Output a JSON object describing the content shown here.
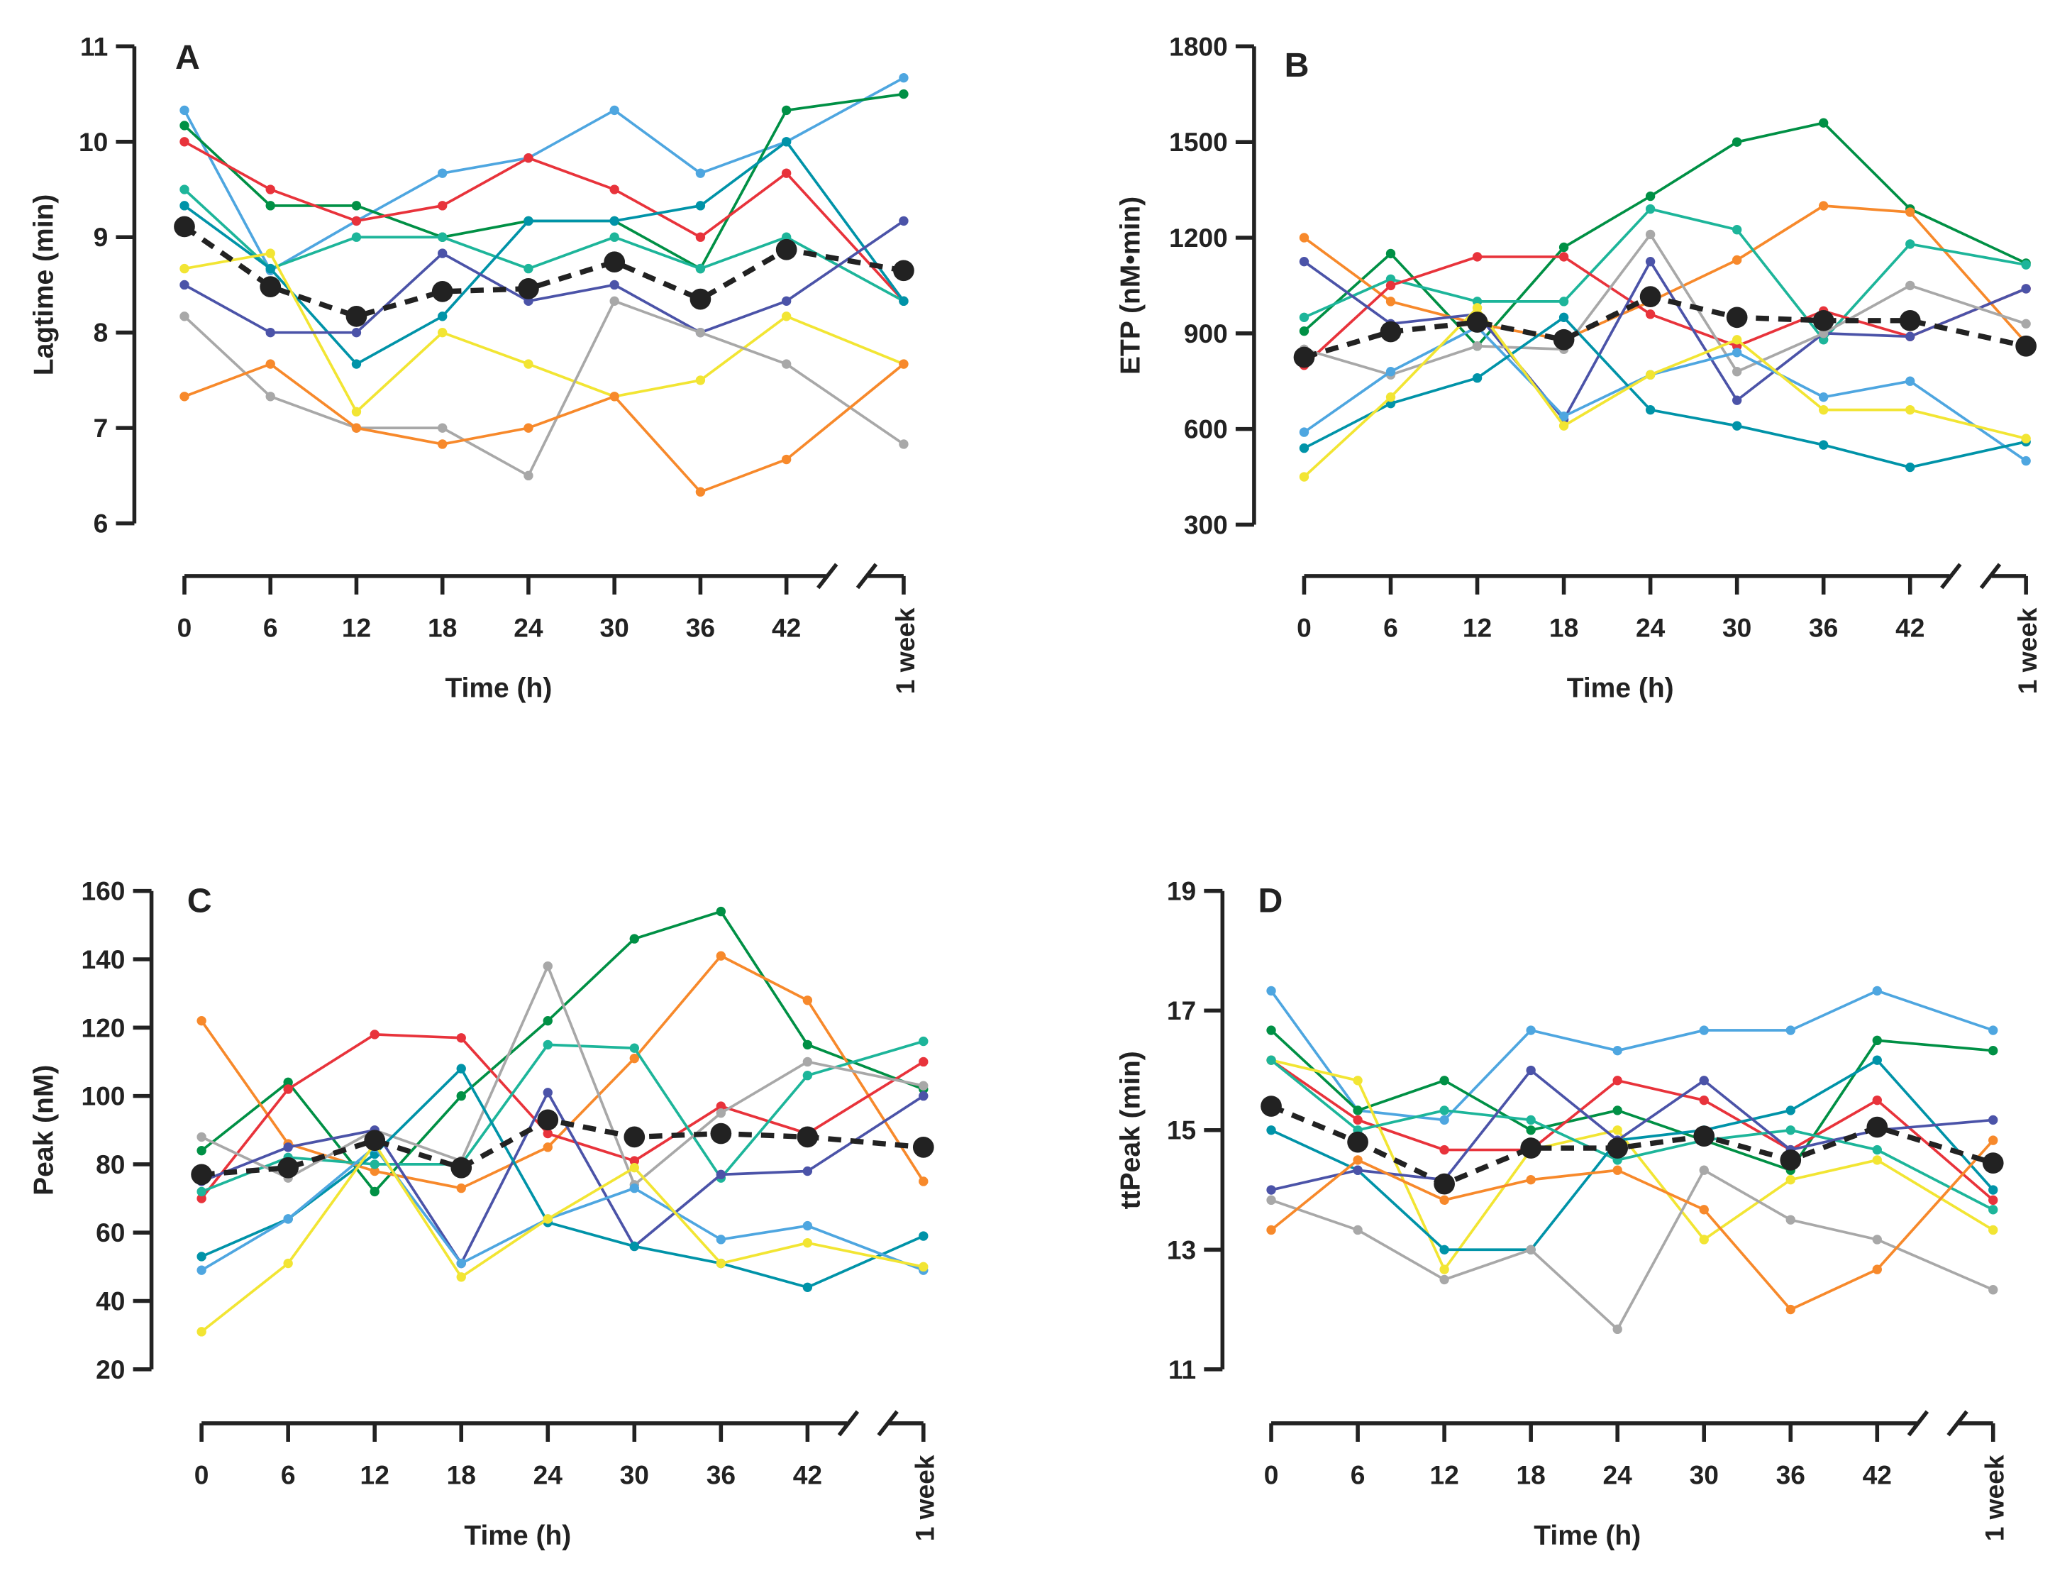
{
  "colors": {
    "lightblue": "#4ea6e0",
    "green": "#009045",
    "red": "#e8333b",
    "tealgreen": "#1db59a",
    "darkteal": "#0093a8",
    "yellow": "#f2e533",
    "navy": "#4b53a8",
    "gray": "#a8a8a8",
    "orange": "#f7892b",
    "mean": "#222222"
  },
  "chart_data": [
    {
      "panel": "A",
      "type": "line",
      "xlabel": "Time (h)",
      "ylabel": "Lagtime (min)",
      "categories": [
        "0",
        "6",
        "12",
        "18",
        "24",
        "30",
        "36",
        "42",
        "1 week"
      ],
      "ylim": [
        6,
        11
      ],
      "yticks": [
        6,
        7,
        8,
        9,
        10,
        11
      ],
      "grid": false,
      "series": [
        {
          "color": "lightblue",
          "values": [
            10.33,
            8.65,
            9.17,
            9.67,
            9.83,
            10.33,
            9.67,
            10.0,
            10.67
          ]
        },
        {
          "color": "green",
          "values": [
            10.17,
            9.33,
            9.33,
            9.0,
            9.17,
            9.17,
            8.67,
            10.33,
            10.5
          ]
        },
        {
          "color": "red",
          "values": [
            10.0,
            9.5,
            9.17,
            9.33,
            9.83,
            9.5,
            9.0,
            9.67,
            8.33
          ]
        },
        {
          "color": "tealgreen",
          "values": [
            9.5,
            8.67,
            9.0,
            9.0,
            8.67,
            9.0,
            8.67,
            9.0,
            8.33
          ]
        },
        {
          "color": "darkteal",
          "values": [
            9.33,
            8.67,
            7.67,
            8.17,
            9.17,
            9.17,
            9.33,
            10.0,
            8.33
          ]
        },
        {
          "color": "yellow",
          "values": [
            8.67,
            8.83,
            7.17,
            8.0,
            7.67,
            7.33,
            7.5,
            8.17,
            7.67
          ]
        },
        {
          "color": "navy",
          "values": [
            8.5,
            8.0,
            8.0,
            8.83,
            8.33,
            8.5,
            8.0,
            8.33,
            9.17
          ]
        },
        {
          "color": "gray",
          "values": [
            8.17,
            7.33,
            7.0,
            7.0,
            6.5,
            8.33,
            8.0,
            7.67,
            6.83
          ]
        },
        {
          "color": "orange",
          "values": [
            7.33,
            7.67,
            7.0,
            6.83,
            7.0,
            7.33,
            6.33,
            6.67,
            7.67
          ]
        },
        {
          "color": "mean",
          "mean": true,
          "values": [
            9.11,
            8.48,
            8.17,
            8.43,
            8.46,
            8.74,
            8.35,
            8.87,
            8.65
          ]
        }
      ]
    },
    {
      "panel": "B",
      "type": "line",
      "xlabel": "Time (h)",
      "ylabel": "ETP (nM•min)",
      "categories": [
        "0",
        "6",
        "12",
        "18",
        "24",
        "30",
        "36",
        "42",
        "1 week"
      ],
      "ylim": [
        300,
        1800
      ],
      "yticks": [
        300,
        600,
        900,
        1200,
        1500,
        1800
      ],
      "grid": false,
      "series": [
        {
          "color": "green",
          "values": [
            907,
            1150,
            860,
            1170,
            1330,
            1500,
            1560,
            1290,
            1120
          ]
        },
        {
          "color": "orange",
          "values": [
            1200,
            1000,
            930,
            880,
            1000,
            1130,
            1300,
            1280,
            870
          ]
        },
        {
          "color": "tealgreen",
          "values": [
            950,
            1070,
            1000,
            1000,
            1290,
            1225,
            880,
            1180,
            1115
          ]
        },
        {
          "color": "red",
          "values": [
            800,
            1050,
            1140,
            1140,
            960,
            860,
            970,
            890,
            1040
          ]
        },
        {
          "color": "navy",
          "values": [
            1125,
            930,
            960,
            630,
            1125,
            690,
            900,
            890,
            1040
          ]
        },
        {
          "color": "gray",
          "values": [
            850,
            770,
            860,
            850,
            1210,
            780,
            900,
            1050,
            930
          ]
        },
        {
          "color": "lightblue",
          "values": [
            590,
            780,
            920,
            640,
            770,
            840,
            700,
            750,
            500
          ]
        },
        {
          "color": "darkteal",
          "values": [
            540,
            680,
            760,
            950,
            660,
            610,
            550,
            480,
            560
          ]
        },
        {
          "color": "yellow",
          "values": [
            450,
            700,
            980,
            610,
            770,
            880,
            660,
            660,
            570
          ]
        },
        {
          "color": "mean",
          "mean": true,
          "values": [
            825,
            905,
            935,
            880,
            1015,
            950,
            940,
            940,
            860
          ]
        }
      ]
    },
    {
      "panel": "C",
      "type": "line",
      "xlabel": "Time (h)",
      "ylabel": "Peak (nM)",
      "categories": [
        "0",
        "6",
        "12",
        "18",
        "24",
        "30",
        "36",
        "42",
        "1 week"
      ],
      "ylim": [
        20,
        160
      ],
      "yticks": [
        20,
        40,
        60,
        80,
        100,
        120,
        140,
        160
      ],
      "grid": false,
      "series": [
        {
          "color": "green",
          "values": [
            84,
            104,
            72,
            100,
            122,
            146,
            154,
            115,
            102
          ]
        },
        {
          "color": "orange",
          "values": [
            122,
            86,
            78,
            73,
            85,
            111,
            141,
            128,
            75
          ]
        },
        {
          "color": "red",
          "values": [
            70,
            102,
            118,
            117,
            89,
            81,
            97,
            89,
            110
          ]
        },
        {
          "color": "tealgreen",
          "values": [
            72,
            82,
            80,
            80,
            115,
            114,
            76,
            106,
            116
          ]
        },
        {
          "color": "gray",
          "values": [
            88,
            76,
            90,
            81,
            138,
            74,
            95,
            110,
            103
          ]
        },
        {
          "color": "navy",
          "values": [
            75,
            85,
            90,
            51,
            101,
            56,
            77,
            78,
            100
          ]
        },
        {
          "color": "darkteal",
          "values": [
            53,
            64,
            83,
            108,
            63,
            56,
            51,
            44,
            59
          ]
        },
        {
          "color": "lightblue",
          "values": [
            49,
            64,
            85,
            51,
            64,
            73,
            58,
            62,
            49
          ]
        },
        {
          "color": "yellow",
          "values": [
            31,
            51,
            86,
            47,
            64,
            79,
            51,
            57,
            50
          ]
        },
        {
          "color": "mean",
          "mean": true,
          "values": [
            77,
            79,
            87,
            79,
            93,
            88,
            89,
            88,
            85
          ]
        }
      ]
    },
    {
      "panel": "D",
      "type": "line",
      "xlabel": "Time (h)",
      "ylabel": "ttPeak (min)",
      "categories": [
        "0",
        "6",
        "12",
        "18",
        "24",
        "30",
        "36",
        "42",
        "1 week"
      ],
      "ylim": [
        11,
        19
      ],
      "yticks": [
        11,
        13,
        15,
        17,
        19
      ],
      "grid": false,
      "series": [
        {
          "color": "lightblue",
          "values": [
            17.33,
            15.33,
            15.17,
            16.67,
            16.33,
            16.67,
            16.67,
            17.33,
            16.67
          ]
        },
        {
          "color": "green",
          "values": [
            16.67,
            15.33,
            15.83,
            15.0,
            15.33,
            14.83,
            14.33,
            16.5,
            16.33
          ]
        },
        {
          "color": "red",
          "values": [
            16.17,
            15.17,
            14.67,
            14.67,
            15.83,
            15.5,
            14.67,
            15.5,
            13.83
          ]
        },
        {
          "color": "yellow",
          "values": [
            16.17,
            15.83,
            12.67,
            14.67,
            15.0,
            13.17,
            14.17,
            14.5,
            13.33
          ]
        },
        {
          "color": "tealgreen",
          "values": [
            16.17,
            15.0,
            15.33,
            15.17,
            14.5,
            14.83,
            15.0,
            14.67,
            13.67
          ]
        },
        {
          "color": "darkteal",
          "values": [
            15.0,
            14.33,
            13.0,
            13.0,
            14.83,
            15.0,
            15.33,
            16.17,
            14.0
          ]
        },
        {
          "color": "navy",
          "values": [
            14.0,
            14.33,
            14.17,
            16.0,
            14.83,
            15.83,
            14.67,
            15.0,
            15.17
          ]
        },
        {
          "color": "gray",
          "values": [
            13.83,
            13.33,
            12.5,
            13.0,
            11.67,
            14.33,
            13.5,
            13.17,
            12.33
          ]
        },
        {
          "color": "orange",
          "values": [
            13.33,
            14.5,
            13.83,
            14.17,
            14.33,
            13.67,
            12.0,
            12.67,
            14.83
          ]
        },
        {
          "color": "mean",
          "mean": true,
          "values": [
            15.4,
            14.8,
            14.1,
            14.7,
            14.7,
            14.9,
            14.5,
            15.05,
            14.45
          ]
        }
      ]
    }
  ]
}
